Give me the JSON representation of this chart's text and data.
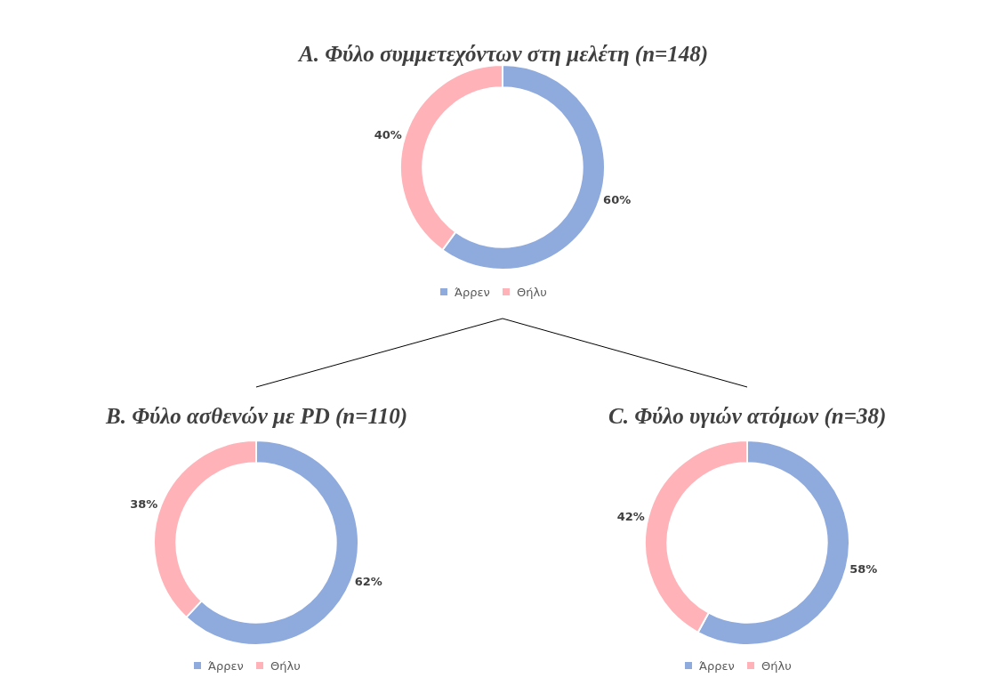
{
  "chart_data": [
    {
      "type": "donut",
      "title": "A. Φύλο συμμετεχόντων στη μελέτη (n=148)",
      "categories": [
        "Άρρεν",
        "Θήλυ"
      ],
      "values": [
        60,
        40
      ],
      "value_labels": [
        "60%",
        "40%"
      ],
      "colors": [
        "#8faadc",
        "#ffb3b8"
      ],
      "legend": "bottom"
    },
    {
      "type": "donut",
      "title": "B. Φύλο ασθενών με PD (n=110)",
      "categories": [
        "Άρρεν",
        "Θήλυ"
      ],
      "values": [
        62,
        38
      ],
      "value_labels": [
        "62%",
        "38%"
      ],
      "colors": [
        "#8faadc",
        "#ffb3b8"
      ],
      "legend": "bottom"
    },
    {
      "type": "donut",
      "title": "C. Φύλο υγιών ατόμων (n=38)",
      "categories": [
        "Άρρεν",
        "Θήλυ"
      ],
      "values": [
        58,
        42
      ],
      "value_labels": [
        "58%",
        "42%"
      ],
      "colors": [
        "#8faadc",
        "#ffb3b8"
      ],
      "legend": "bottom"
    }
  ]
}
